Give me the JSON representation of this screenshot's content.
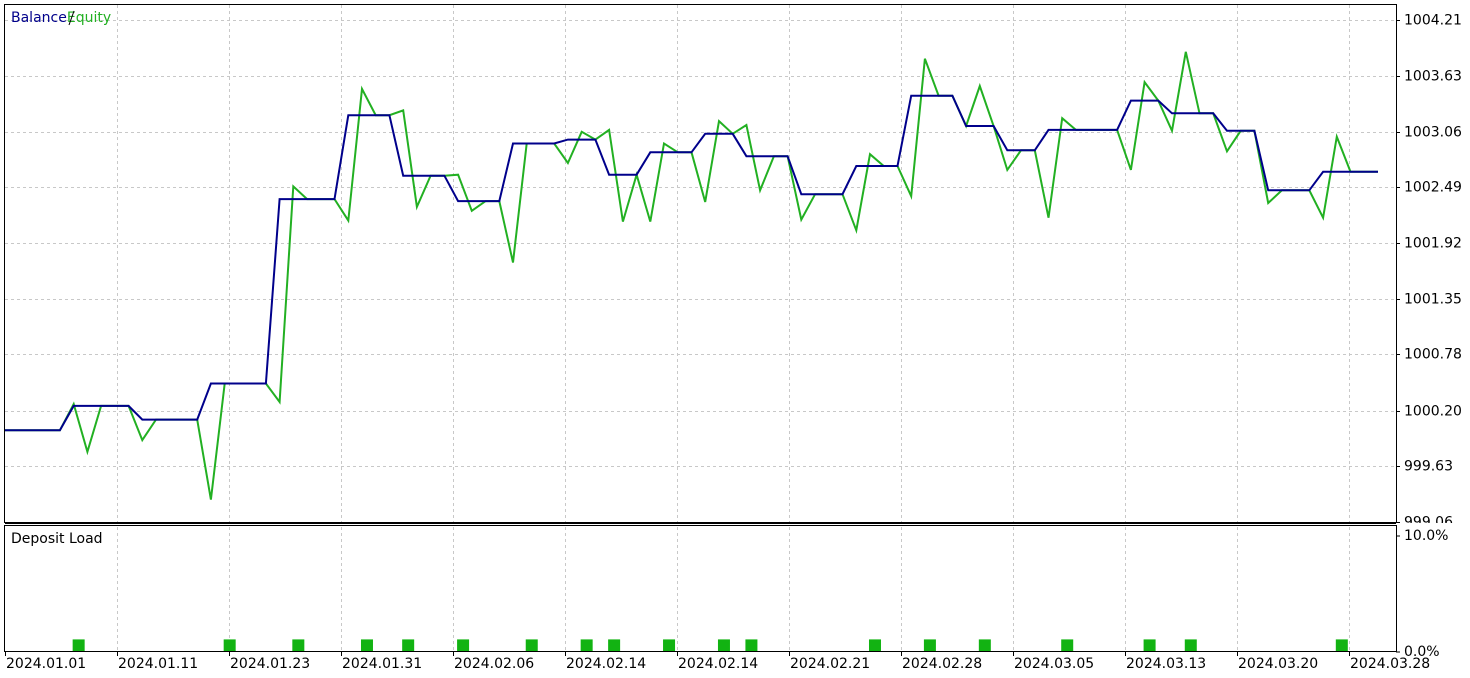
{
  "chart_data": [
    {
      "type": "line",
      "series": [
        {
          "name": "Balance",
          "color": "#00008b",
          "values": [
            1000.0,
            1000.0,
            1000.0,
            1000.0,
            1000.0,
            1000.25,
            1000.25,
            1000.25,
            1000.25,
            1000.25,
            1000.11,
            1000.11,
            1000.11,
            1000.11,
            1000.11,
            1000.48,
            1000.48,
            1000.48,
            1000.48,
            1000.48,
            1002.37,
            1002.37,
            1002.37,
            1002.37,
            1002.37,
            1003.23,
            1003.23,
            1003.23,
            1003.23,
            1002.61,
            1002.61,
            1002.61,
            1002.61,
            1002.35,
            1002.35,
            1002.35,
            1002.35,
            1002.94,
            1002.94,
            1002.94,
            1002.94,
            1002.98,
            1002.98,
            1002.98,
            1002.62,
            1002.62,
            1002.62,
            1002.85,
            1002.85,
            1002.85,
            1002.85,
            1003.04,
            1003.04,
            1003.04,
            1002.81,
            1002.81,
            1002.81,
            1002.81,
            1002.42,
            1002.42,
            1002.42,
            1002.42,
            1002.71,
            1002.71,
            1002.71,
            1002.71,
            1003.43,
            1003.43,
            1003.43,
            1003.43,
            1003.12,
            1003.12,
            1003.12,
            1002.87,
            1002.87,
            1002.87,
            1003.08,
            1003.08,
            1003.08,
            1003.08,
            1003.08,
            1003.08,
            1003.38,
            1003.38,
            1003.38,
            1003.25,
            1003.25,
            1003.25,
            1003.25,
            1003.07,
            1003.07,
            1003.07,
            1002.46,
            1002.46,
            1002.46,
            1002.46,
            1002.65,
            1002.65,
            1002.65,
            1002.65,
            1002.65
          ]
        },
        {
          "name": "Equity",
          "color": "#22b022",
          "values": [
            1000.0,
            1000.0,
            1000.0,
            1000.0,
            1000.0,
            1000.27,
            999.78,
            1000.25,
            1000.25,
            1000.25,
            999.9,
            1000.11,
            1000.11,
            1000.11,
            1000.11,
            999.29,
            1000.48,
            1000.48,
            1000.48,
            1000.48,
            1000.29,
            1002.5,
            1002.37,
            1002.37,
            1002.37,
            1002.15,
            1003.5,
            1003.23,
            1003.23,
            1003.28,
            1002.29,
            1002.61,
            1002.61,
            1002.62,
            1002.25,
            1002.35,
            1002.35,
            1001.72,
            1002.94,
            1002.94,
            1002.94,
            1002.74,
            1003.06,
            1002.98,
            1003.08,
            1002.14,
            1002.62,
            1002.14,
            1002.94,
            1002.85,
            1002.85,
            1002.34,
            1003.17,
            1003.04,
            1003.13,
            1002.46,
            1002.81,
            1002.81,
            1002.16,
            1002.42,
            1002.42,
            1002.42,
            1002.05,
            1002.83,
            1002.71,
            1002.71,
            1002.4,
            1003.81,
            1003.43,
            1003.43,
            1003.12,
            1003.53,
            1003.12,
            1002.67,
            1002.87,
            1002.87,
            1002.18,
            1003.2,
            1003.08,
            1003.08,
            1003.08,
            1003.08,
            1002.67,
            1003.57,
            1003.38,
            1003.07,
            1003.88,
            1003.25,
            1003.25,
            1002.86,
            1003.07,
            1003.07,
            1002.33,
            1002.46,
            1002.46,
            1002.46,
            1002.18,
            1003.01,
            1002.65,
            1002.65,
            1002.65
          ]
        }
      ],
      "ylim": [
        999.06,
        1004.36
      ],
      "yticks": [
        999.06,
        999.63,
        {
          "value": 1000.2,
          "label": "1000.20"
        },
        1000.78,
        1001.35,
        1001.92,
        1002.49,
        1003.06,
        1003.63,
        1004.21
      ],
      "grid": true
    },
    {
      "type": "bar",
      "title": "Deposit Load",
      "color": "#12b312",
      "values": [
        0,
        0,
        0,
        0,
        0,
        1,
        0,
        0,
        0,
        0,
        0,
        0,
        0,
        0,
        0,
        0,
        1,
        0,
        0,
        0,
        0,
        1,
        0,
        0,
        0,
        0,
        1,
        0,
        0,
        1,
        0,
        0,
        0,
        1,
        0,
        0,
        0,
        0,
        1,
        0,
        0,
        0,
        1,
        0,
        1,
        0,
        0,
        0,
        1,
        0,
        0,
        0,
        1,
        0,
        1,
        0,
        0,
        0,
        0,
        0,
        0,
        0,
        0,
        1,
        0,
        0,
        0,
        1,
        0,
        0,
        0,
        1,
        0,
        0,
        0,
        0,
        0,
        1,
        0,
        0,
        0,
        0,
        0,
        1,
        0,
        0,
        1,
        0,
        0,
        0,
        0,
        0,
        0,
        0,
        0,
        0,
        0,
        1,
        0,
        0,
        0
      ],
      "ylim": [
        0,
        10
      ],
      "yticks": [
        {
          "value": 0,
          "label": "0.0%"
        },
        {
          "value": 10,
          "label": "10.0%"
        }
      ],
      "x_labels": [
        "2024.01.01",
        "2024.01.11",
        "2024.01.23",
        "2024.01.31",
        "2024.02.06",
        "2024.02.14",
        "2024.02.14",
        "2024.02.21",
        "2024.02.28",
        "2024.03.05",
        "2024.03.13",
        "2024.03.20",
        "2024.03.28"
      ],
      "grid": true
    }
  ]
}
